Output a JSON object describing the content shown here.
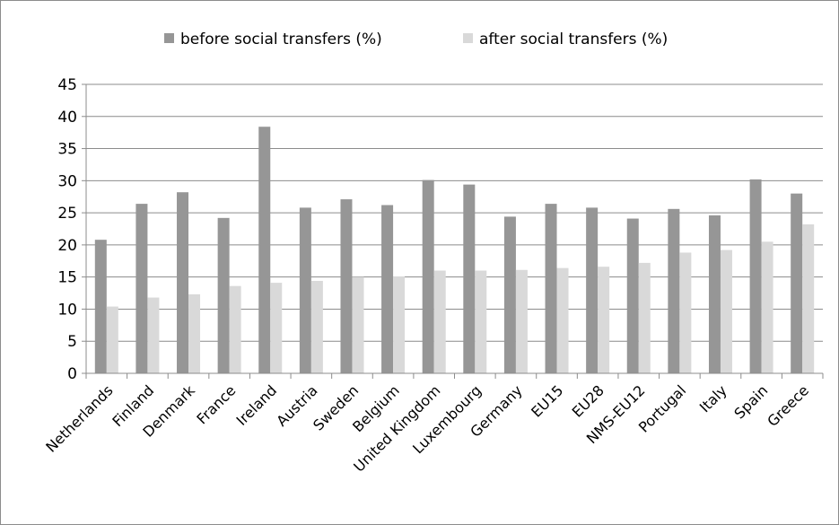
{
  "chart_data": {
    "type": "bar",
    "categories": [
      "Netherlands",
      "Finland",
      "Denmark",
      "France",
      "Ireland",
      "Austria",
      "Sweden",
      "Belgium",
      "United Kingdom",
      "Luxembourg",
      "Germany",
      "EU15",
      "EU28",
      "NMS-EU12",
      "Portugal",
      "Italy",
      "Spain",
      "Greece"
    ],
    "series": [
      {
        "name": "before social transfers (%)",
        "color": "#969696",
        "values": [
          20.8,
          26.4,
          28.2,
          24.2,
          38.4,
          25.8,
          27.1,
          26.2,
          30.1,
          29.4,
          24.4,
          26.4,
          25.8,
          24.1,
          25.6,
          24.6,
          30.2,
          28.0
        ]
      },
      {
        "name": "after social transfers (%)",
        "color": "#d9d9d9",
        "values": [
          10.4,
          11.8,
          12.3,
          13.6,
          14.1,
          14.4,
          15.0,
          15.1,
          16.0,
          16.0,
          16.1,
          16.4,
          16.6,
          17.2,
          18.8,
          19.2,
          20.5,
          23.2
        ]
      }
    ],
    "y_ticks": [
      "0",
      "5",
      "10",
      "15",
      "20",
      "25",
      "30",
      "35",
      "40",
      "45"
    ],
    "ylim": [
      0,
      45
    ],
    "grid": true,
    "legend_position": "top"
  }
}
